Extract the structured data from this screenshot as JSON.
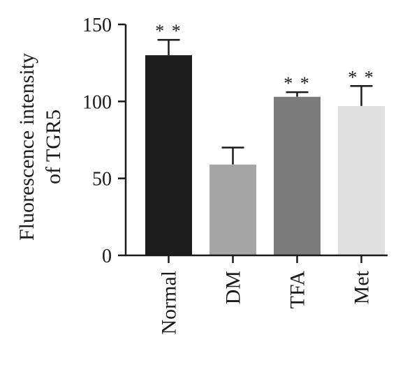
{
  "chart_data": {
    "type": "bar",
    "title": "",
    "xlabel": "",
    "ylabel_lines": [
      "Fluorescence intensity",
      "of TGR5"
    ],
    "ylim": [
      0,
      150
    ],
    "yticks": [
      0,
      50,
      100,
      150
    ],
    "grid": false,
    "categories": [
      "Normal",
      "DM",
      "TFA",
      "Met"
    ],
    "values": [
      130,
      59,
      103,
      97
    ],
    "error_upper": [
      10,
      11,
      3,
      13
    ],
    "significance": [
      "**",
      "",
      "**",
      "**"
    ],
    "colors": [
      "#1d1d1d",
      "#a6a6a6",
      "#7b7b7b",
      "#e0e0e0"
    ]
  }
}
